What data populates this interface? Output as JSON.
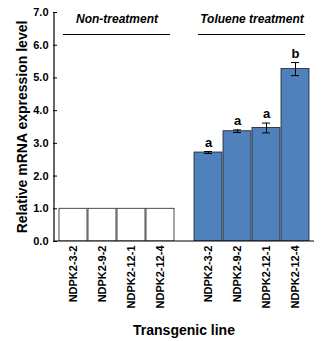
{
  "chart_data": {
    "type": "bar",
    "categories": [
      "NDPK2-3-2",
      "NDPK2-9-2",
      "NDPK2-12-1",
      "NDPK2-12-4",
      "NDPK2-3-2",
      "NDPK2-9-2",
      "NDPK2-12-1",
      "NDPK2-12-4"
    ],
    "groups": [
      "Non-treatment",
      "Non-treatment",
      "Non-treatment",
      "Non-treatment",
      "Toluene treatment",
      "Toluene treatment",
      "Toluene treatment",
      "Toluene treatment"
    ],
    "values": [
      1,
      1,
      1,
      1,
      2.72,
      3.37,
      3.47,
      5.27
    ],
    "errors": [
      null,
      null,
      null,
      null,
      0.03,
      0.04,
      0.15,
      0.2
    ],
    "significance": [
      null,
      null,
      null,
      null,
      "a",
      "a",
      "a",
      "b"
    ],
    "colors": [
      "#ffffff",
      "#ffffff",
      "#ffffff",
      "#ffffff",
      "#4f81bd",
      "#4f81bd",
      "#4f81bd",
      "#4f81bd"
    ],
    "x_label": "Transgenic line",
    "y_label": "Relative mRNA expression level",
    "ylim": [
      0,
      7
    ],
    "yticks": [
      0,
      1,
      2,
      3,
      4,
      5,
      6,
      7
    ],
    "grid": false
  }
}
